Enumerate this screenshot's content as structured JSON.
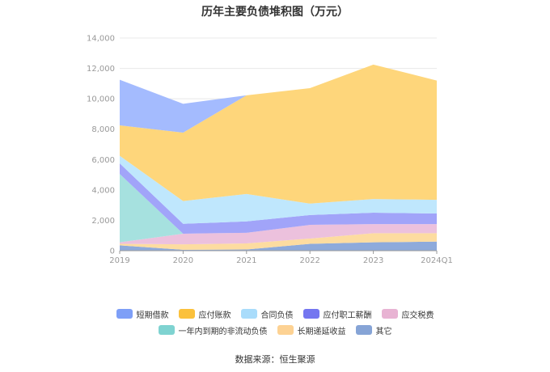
{
  "chart_data": {
    "type": "area",
    "stacked": true,
    "title": "历年主要负债堆积图（万元）",
    "categories": [
      "2019",
      "2020",
      "2021",
      "2022",
      "2023",
      "2024Q1"
    ],
    "ylim": [
      0,
      14000
    ],
    "yticks": [
      "0",
      "2,000",
      "4,000",
      "6,000",
      "8,000",
      "10,000",
      "12,000",
      "14,000"
    ],
    "ytick_values": [
      0,
      2000,
      4000,
      6000,
      8000,
      10000,
      12000,
      14000
    ],
    "grid": true,
    "legend_position": "bottom",
    "series": [
      {
        "name": "其它",
        "color": "#8eaadb",
        "values": [
          350,
          60,
          80,
          450,
          550,
          600
        ]
      },
      {
        "name": "长期递延收益",
        "color": "#fddca0",
        "values": [
          100,
          360,
          400,
          350,
          600,
          550
        ]
      },
      {
        "name": "应交税费",
        "color": "#ecc1dd",
        "values": [
          100,
          700,
          700,
          900,
          600,
          600
        ]
      },
      {
        "name": "一年内到期的非流动负债",
        "color": "#a6e1df",
        "values": [
          4500,
          0,
          0,
          0,
          0,
          0
        ]
      },
      {
        "name": "应付职工薪酬",
        "color": "#a1a4f9",
        "values": [
          700,
          650,
          750,
          650,
          750,
          700
        ]
      },
      {
        "name": "合同负债",
        "color": "#bfe7fd",
        "values": [
          500,
          1500,
          1800,
          750,
          900,
          900
        ]
      },
      {
        "name": "应付账款",
        "color": "#fed67b",
        "values": [
          2000,
          4500,
          6500,
          7600,
          8850,
          7850
        ]
      },
      {
        "name": "短期借款",
        "color": "#a4bbfe",
        "values": [
          3000,
          1900,
          0,
          0,
          0,
          0
        ]
      }
    ]
  },
  "legend": {
    "rows": [
      [
        {
          "label": "短期借款",
          "color": "#7e9ff7"
        },
        {
          "label": "应付账款",
          "color": "#fbc13c"
        },
        {
          "label": "合同负债",
          "color": "#a9dcfb"
        },
        {
          "label": "应付职工薪酬",
          "color": "#7476f0"
        },
        {
          "label": "应交税费",
          "color": "#e8b3d3"
        }
      ],
      [
        {
          "label": "一年内到期的非流动负债",
          "color": "#7fd3d1"
        },
        {
          "label": "长期递延收益",
          "color": "#fdd293"
        },
        {
          "label": "其它",
          "color": "#86a4d6"
        }
      ]
    ]
  },
  "source": "数据来源：恒生聚源"
}
